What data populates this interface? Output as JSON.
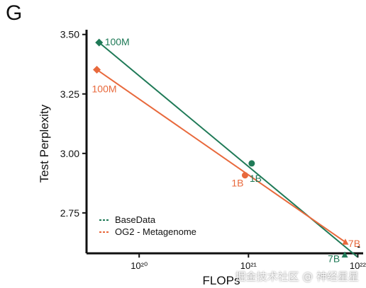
{
  "panel_label": "G",
  "watermark": "掘金技术社区 @ 神经星星",
  "chart_data": {
    "type": "line",
    "xlabel": "FLOPs",
    "ylabel": "Test Perplexity",
    "xscale": "log",
    "xlim": [
      3.3e+19,
      1.12e+22
    ],
    "ylim": [
      2.58,
      3.52
    ],
    "xticks": [
      {
        "value": 1e+20,
        "label": "10²⁰"
      },
      {
        "value": 1e+21,
        "label": "10²¹"
      },
      {
        "value": 1e+22,
        "label": "10²²"
      }
    ],
    "yticks": [
      {
        "value": 2.75,
        "label": "2.75"
      },
      {
        "value": 3.0,
        "label": "3.00"
      },
      {
        "value": 3.25,
        "label": "3.25"
      },
      {
        "value": 3.5,
        "label": "3.50"
      }
    ],
    "grid": false,
    "legend_position": "bottom-left",
    "series": [
      {
        "name": "BaseData",
        "color": "#1f7a57",
        "fit_line": [
          {
            "x": 4.3e+19,
            "y": 3.466
          },
          {
            "x": 9.9e+21,
            "y": 2.565
          }
        ],
        "points": [
          {
            "x": 4.3e+19,
            "y": 3.466,
            "label": "100M",
            "marker": "diamond"
          },
          {
            "x": 1.07e+21,
            "y": 2.958,
            "label": "1B",
            "marker": "circle"
          },
          {
            "x": 7.6e+21,
            "y": 2.573,
            "label": "7B",
            "marker": "triangle"
          }
        ]
      },
      {
        "name": "OG2 - Metagenome",
        "color": "#e8693c",
        "fit_line": [
          {
            "x": 4.1e+19,
            "y": 3.352
          },
          {
            "x": 7.7e+21,
            "y": 2.627
          }
        ],
        "points": [
          {
            "x": 4.1e+19,
            "y": 3.352,
            "label": "100M",
            "marker": "diamond"
          },
          {
            "x": 9.3e+20,
            "y": 2.908,
            "label": "1B",
            "marker": "circle"
          },
          {
            "x": 7.7e+21,
            "y": 2.627,
            "label": "7B",
            "marker": "triangle"
          }
        ]
      }
    ],
    "annotations": [
      {
        "text": "-",
        "x": 1.02e+22,
        "y": 2.597,
        "color": "#111111"
      }
    ]
  }
}
